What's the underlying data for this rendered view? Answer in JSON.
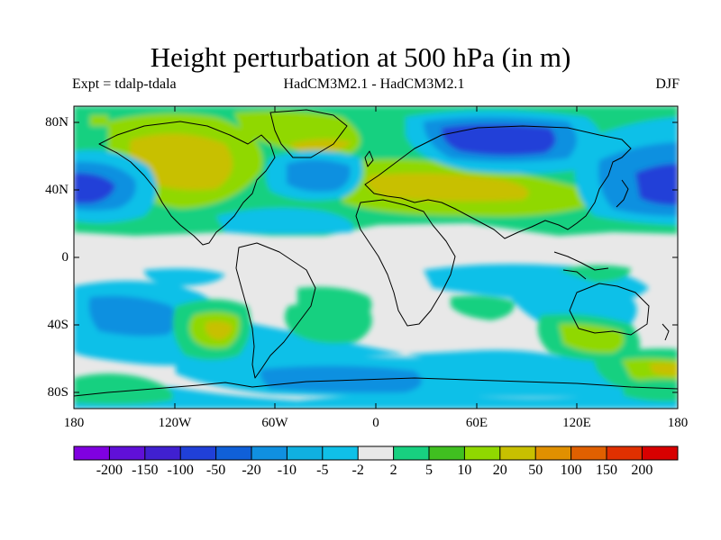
{
  "title": "Height perturbation at 500 hPa (in m)",
  "subtitle_left": "Expt = tdalp-tdala",
  "subtitle_center": "HadCM3M2.1 - HadCM3M2.1",
  "subtitle_right": "DJF",
  "lat_labels": [
    "80N",
    "40N",
    "0",
    "40S",
    "80S"
  ],
  "lon_labels": [
    "180",
    "120W",
    "60W",
    "0",
    "60E",
    "120E",
    "180"
  ],
  "colorbar": {
    "labels": [
      "-200",
      "-150",
      "-100",
      "-50",
      "-20",
      "-10",
      "-5",
      "-2",
      "2",
      "5",
      "10",
      "20",
      "50",
      "100",
      "150",
      "200"
    ],
    "colors": [
      "#8000e0",
      "#6010d8",
      "#4020d0",
      "#2040d8",
      "#1060d8",
      "#1090e0",
      "#10b0e0",
      "#10c0e8",
      "#e8e8e8",
      "#18d080",
      "#40c020",
      "#90d800",
      "#c8c000",
      "#e09000",
      "#e06000",
      "#e03000",
      "#d80000"
    ]
  },
  "map_colors": {
    "neutral": "#e8e8e8",
    "coast": "#000000"
  }
}
